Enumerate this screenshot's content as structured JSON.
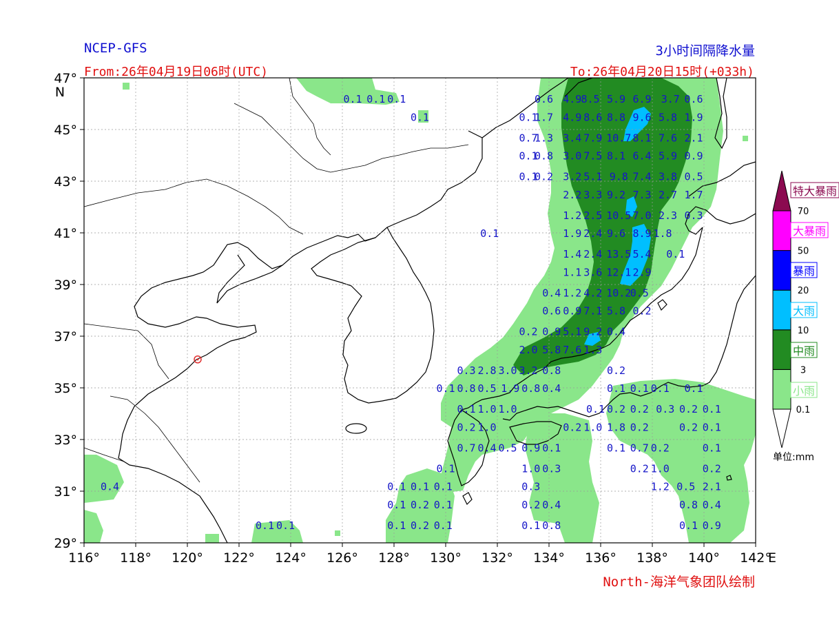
{
  "header": {
    "model": "NCEP-GFS",
    "product": "3小时间隔降水量",
    "from": "From:26年04月19日06时(UTC)",
    "to": "To:26年04月20日15时(+033h)",
    "credit": "North-海洋气象团队绘制"
  },
  "map": {
    "lon_range": [
      116,
      142
    ],
    "lat_range": [
      29,
      47
    ],
    "lon_ticks": [
      "116°",
      "118°",
      "120°",
      "122°",
      "124°",
      "126°",
      "128°",
      "130°",
      "132°",
      "134°",
      "136°",
      "138°",
      "140°",
      "142°"
    ],
    "lat_ticks": [
      "29°",
      "31°",
      "33°",
      "35°",
      "37°",
      "39°",
      "41°",
      "43°",
      "45°",
      "47°"
    ],
    "lon_unit": "E",
    "lat_unit": "N",
    "gridlines": true,
    "marker": {
      "lon": 120.4,
      "lat": 36.1,
      "color": "#e03030"
    }
  },
  "legend": {
    "unit_label": "单位:mm",
    "classes": [
      {
        "name": "小雨",
        "color": "#8ae68a",
        "text_color": "#8ae68a"
      },
      {
        "name": "中雨",
        "color": "#228b22",
        "text_color": "#228b22"
      },
      {
        "name": "大雨",
        "color": "#00bfff",
        "text_color": "#00bfff"
      },
      {
        "name": "暴雨",
        "color": "#0000ff",
        "text_color": "#0000ff"
      },
      {
        "name": "大暴雨",
        "color": "#ff00ff",
        "text_color": "#ff00ff"
      },
      {
        "name": "特大暴雨",
        "color": "#8b0a50",
        "text_color": "#8b0a50"
      }
    ],
    "thresholds": [
      "0.1",
      "3",
      "10",
      "20",
      "50",
      "70"
    ]
  },
  "values": [
    {
      "lon": 126.4,
      "lat": 46.2,
      "v": "0.1"
    },
    {
      "lon": 127.3,
      "lat": 46.2,
      "v": "0.1"
    },
    {
      "lon": 128.1,
      "lat": 46.2,
      "v": "0.1"
    },
    {
      "lon": 129.0,
      "lat": 45.5,
      "v": "0.1"
    },
    {
      "lon": 133.8,
      "lat": 46.2,
      "v": "0.6"
    },
    {
      "lon": 134.9,
      "lat": 46.2,
      "v": "4.9"
    },
    {
      "lon": 135.6,
      "lat": 46.2,
      "v": "8.5"
    },
    {
      "lon": 136.6,
      "lat": 46.2,
      "v": "5.9"
    },
    {
      "lon": 137.6,
      "lat": 46.2,
      "v": "6.9"
    },
    {
      "lon": 138.7,
      "lat": 46.2,
      "v": "3.7"
    },
    {
      "lon": 139.6,
      "lat": 46.2,
      "v": "0.6"
    },
    {
      "lon": 133.2,
      "lat": 45.5,
      "v": "0.1"
    },
    {
      "lon": 133.8,
      "lat": 45.5,
      "v": "1.7"
    },
    {
      "lon": 134.9,
      "lat": 45.5,
      "v": "4.9"
    },
    {
      "lon": 135.7,
      "lat": 45.5,
      "v": "8.6"
    },
    {
      "lon": 136.6,
      "lat": 45.5,
      "v": "8.8"
    },
    {
      "lon": 137.6,
      "lat": 45.5,
      "v": "9.6"
    },
    {
      "lon": 138.6,
      "lat": 45.5,
      "v": "5.8"
    },
    {
      "lon": 139.6,
      "lat": 45.5,
      "v": "1.9"
    },
    {
      "lon": 133.2,
      "lat": 44.7,
      "v": "0.7"
    },
    {
      "lon": 133.8,
      "lat": 44.7,
      "v": "1.3"
    },
    {
      "lon": 134.9,
      "lat": 44.7,
      "v": "3.4"
    },
    {
      "lon": 135.7,
      "lat": 44.7,
      "v": "7.9"
    },
    {
      "lon": 136.7,
      "lat": 44.7,
      "v": "10.7"
    },
    {
      "lon": 137.6,
      "lat": 44.7,
      "v": "8.1"
    },
    {
      "lon": 138.6,
      "lat": 44.7,
      "v": "7.6"
    },
    {
      "lon": 139.6,
      "lat": 44.7,
      "v": "2.1"
    },
    {
      "lon": 133.2,
      "lat": 44.0,
      "v": "0.1"
    },
    {
      "lon": 133.8,
      "lat": 44.0,
      "v": "0.8"
    },
    {
      "lon": 134.9,
      "lat": 44.0,
      "v": "3.0"
    },
    {
      "lon": 135.7,
      "lat": 44.0,
      "v": "7.5"
    },
    {
      "lon": 136.6,
      "lat": 44.0,
      "v": "8.1"
    },
    {
      "lon": 137.6,
      "lat": 44.0,
      "v": "6.4"
    },
    {
      "lon": 138.6,
      "lat": 44.0,
      "v": "5.9"
    },
    {
      "lon": 139.6,
      "lat": 44.0,
      "v": "0.9"
    },
    {
      "lon": 133.2,
      "lat": 43.2,
      "v": "0.1"
    },
    {
      "lon": 133.8,
      "lat": 43.2,
      "v": "0.2"
    },
    {
      "lon": 134.9,
      "lat": 43.2,
      "v": "3.2"
    },
    {
      "lon": 135.7,
      "lat": 43.2,
      "v": "5.1"
    },
    {
      "lon": 136.7,
      "lat": 43.2,
      "v": "9.8"
    },
    {
      "lon": 137.6,
      "lat": 43.2,
      "v": "7.4"
    },
    {
      "lon": 138.6,
      "lat": 43.2,
      "v": "3.8"
    },
    {
      "lon": 139.6,
      "lat": 43.2,
      "v": "0.5"
    },
    {
      "lon": 134.9,
      "lat": 42.5,
      "v": "2.2"
    },
    {
      "lon": 135.7,
      "lat": 42.5,
      "v": "3.3"
    },
    {
      "lon": 136.6,
      "lat": 42.5,
      "v": "9.2"
    },
    {
      "lon": 137.6,
      "lat": 42.5,
      "v": "7.3"
    },
    {
      "lon": 138.6,
      "lat": 42.5,
      "v": "2.7"
    },
    {
      "lon": 139.6,
      "lat": 42.5,
      "v": "1.7"
    },
    {
      "lon": 134.9,
      "lat": 41.7,
      "v": "1.2"
    },
    {
      "lon": 135.7,
      "lat": 41.7,
      "v": "2.5"
    },
    {
      "lon": 136.7,
      "lat": 41.7,
      "v": "10.5"
    },
    {
      "lon": 137.6,
      "lat": 41.7,
      "v": "7.0"
    },
    {
      "lon": 138.6,
      "lat": 41.7,
      "v": "2.3"
    },
    {
      "lon": 139.6,
      "lat": 41.7,
      "v": "0.3"
    },
    {
      "lon": 131.7,
      "lat": 41.0,
      "v": "0.1"
    },
    {
      "lon": 134.9,
      "lat": 41.0,
      "v": "1.9"
    },
    {
      "lon": 135.7,
      "lat": 41.0,
      "v": "2.4"
    },
    {
      "lon": 136.6,
      "lat": 41.0,
      "v": "9.6"
    },
    {
      "lon": 137.6,
      "lat": 41.0,
      "v": "8.9"
    },
    {
      "lon": 138.4,
      "lat": 41.0,
      "v": "1.8"
    },
    {
      "lon": 134.9,
      "lat": 40.2,
      "v": "1.4"
    },
    {
      "lon": 135.7,
      "lat": 40.2,
      "v": "2.4"
    },
    {
      "lon": 136.7,
      "lat": 40.2,
      "v": "13.5"
    },
    {
      "lon": 137.6,
      "lat": 40.2,
      "v": "5.4"
    },
    {
      "lon": 138.9,
      "lat": 40.2,
      "v": "0.1"
    },
    {
      "lon": 134.9,
      "lat": 39.5,
      "v": "1.1"
    },
    {
      "lon": 135.7,
      "lat": 39.5,
      "v": "3.6"
    },
    {
      "lon": 136.7,
      "lat": 39.5,
      "v": "12.1"
    },
    {
      "lon": 137.6,
      "lat": 39.5,
      "v": "2.9"
    },
    {
      "lon": 134.1,
      "lat": 38.7,
      "v": "0.4"
    },
    {
      "lon": 134.9,
      "lat": 38.7,
      "v": "1.2"
    },
    {
      "lon": 135.7,
      "lat": 38.7,
      "v": "4.2"
    },
    {
      "lon": 136.7,
      "lat": 38.7,
      "v": "10.2"
    },
    {
      "lon": 137.5,
      "lat": 38.7,
      "v": "0.5"
    },
    {
      "lon": 134.1,
      "lat": 38.0,
      "v": "0.6"
    },
    {
      "lon": 134.9,
      "lat": 38.0,
      "v": "0.9"
    },
    {
      "lon": 135.7,
      "lat": 38.0,
      "v": "7.1"
    },
    {
      "lon": 136.6,
      "lat": 38.0,
      "v": "5.8"
    },
    {
      "lon": 137.6,
      "lat": 38.0,
      "v": "0.2"
    },
    {
      "lon": 133.2,
      "lat": 37.2,
      "v": "0.2"
    },
    {
      "lon": 134.1,
      "lat": 37.2,
      "v": "0.9"
    },
    {
      "lon": 134.9,
      "lat": 37.2,
      "v": "5.1"
    },
    {
      "lon": 135.7,
      "lat": 37.2,
      "v": "9.2"
    },
    {
      "lon": 136.6,
      "lat": 37.2,
      "v": "0.4"
    },
    {
      "lon": 133.2,
      "lat": 36.5,
      "v": "2.0"
    },
    {
      "lon": 134.1,
      "lat": 36.5,
      "v": "5.8"
    },
    {
      "lon": 134.9,
      "lat": 36.5,
      "v": "7.6"
    },
    {
      "lon": 135.7,
      "lat": 36.5,
      "v": "1.3"
    },
    {
      "lon": 130.8,
      "lat": 35.7,
      "v": "0.3"
    },
    {
      "lon": 131.6,
      "lat": 35.7,
      "v": "2.8"
    },
    {
      "lon": 132.4,
      "lat": 35.7,
      "v": "3.0"
    },
    {
      "lon": 133.2,
      "lat": 35.7,
      "v": "3.2"
    },
    {
      "lon": 134.1,
      "lat": 35.7,
      "v": "0.8"
    },
    {
      "lon": 136.6,
      "lat": 35.7,
      "v": "0.2"
    },
    {
      "lon": 130.0,
      "lat": 35.0,
      "v": "0.1"
    },
    {
      "lon": 130.8,
      "lat": 35.0,
      "v": "0.8"
    },
    {
      "lon": 131.6,
      "lat": 35.0,
      "v": "0.5"
    },
    {
      "lon": 132.5,
      "lat": 35.0,
      "v": "1.9"
    },
    {
      "lon": 133.3,
      "lat": 35.0,
      "v": "0.8"
    },
    {
      "lon": 134.1,
      "lat": 35.0,
      "v": "0.4"
    },
    {
      "lon": 136.6,
      "lat": 35.0,
      "v": "0.1"
    },
    {
      "lon": 137.5,
      "lat": 35.0,
      "v": "0.1"
    },
    {
      "lon": 138.3,
      "lat": 35.0,
      "v": "0.1"
    },
    {
      "lon": 139.6,
      "lat": 35.0,
      "v": "0.1"
    },
    {
      "lon": 130.8,
      "lat": 34.2,
      "v": "0.1"
    },
    {
      "lon": 131.6,
      "lat": 34.2,
      "v": "1.0"
    },
    {
      "lon": 132.4,
      "lat": 34.2,
      "v": "1.0"
    },
    {
      "lon": 135.8,
      "lat": 34.2,
      "v": "0.1"
    },
    {
      "lon": 136.6,
      "lat": 34.2,
      "v": "0.2"
    },
    {
      "lon": 137.5,
      "lat": 34.2,
      "v": "0.2"
    },
    {
      "lon": 138.5,
      "lat": 34.2,
      "v": "0.3"
    },
    {
      "lon": 139.4,
      "lat": 34.2,
      "v": "0.2"
    },
    {
      "lon": 140.3,
      "lat": 34.2,
      "v": "0.1"
    },
    {
      "lon": 130.8,
      "lat": 33.5,
      "v": "0.2"
    },
    {
      "lon": 131.6,
      "lat": 33.5,
      "v": "1.0"
    },
    {
      "lon": 134.9,
      "lat": 33.5,
      "v": "0.2"
    },
    {
      "lon": 135.7,
      "lat": 33.5,
      "v": "1.0"
    },
    {
      "lon": 136.6,
      "lat": 33.5,
      "v": "1.8"
    },
    {
      "lon": 137.5,
      "lat": 33.5,
      "v": "0.2"
    },
    {
      "lon": 139.4,
      "lat": 33.5,
      "v": "0.2"
    },
    {
      "lon": 140.3,
      "lat": 33.5,
      "v": "0.1"
    },
    {
      "lon": 130.8,
      "lat": 32.7,
      "v": "0.7"
    },
    {
      "lon": 131.6,
      "lat": 32.7,
      "v": "0.4"
    },
    {
      "lon": 132.4,
      "lat": 32.7,
      "v": "0.5"
    },
    {
      "lon": 133.3,
      "lat": 32.7,
      "v": "0.9"
    },
    {
      "lon": 134.1,
      "lat": 32.7,
      "v": "0.1"
    },
    {
      "lon": 136.6,
      "lat": 32.7,
      "v": "0.1"
    },
    {
      "lon": 137.5,
      "lat": 32.7,
      "v": "0.7"
    },
    {
      "lon": 138.3,
      "lat": 32.7,
      "v": "0.2"
    },
    {
      "lon": 140.3,
      "lat": 32.7,
      "v": "0.1"
    },
    {
      "lon": 130.0,
      "lat": 31.9,
      "v": "0.1"
    },
    {
      "lon": 133.3,
      "lat": 31.9,
      "v": "1.0"
    },
    {
      "lon": 134.1,
      "lat": 31.9,
      "v": "0.3"
    },
    {
      "lon": 137.5,
      "lat": 31.9,
      "v": "0.2"
    },
    {
      "lon": 138.3,
      "lat": 31.9,
      "v": "1.0"
    },
    {
      "lon": 140.3,
      "lat": 31.9,
      "v": "0.2"
    },
    {
      "lon": 117.0,
      "lat": 31.2,
      "v": "0.4"
    },
    {
      "lon": 128.1,
      "lat": 31.2,
      "v": "0.1"
    },
    {
      "lon": 129.0,
      "lat": 31.2,
      "v": "0.1"
    },
    {
      "lon": 129.9,
      "lat": 31.2,
      "v": "0.1"
    },
    {
      "lon": 133.3,
      "lat": 31.2,
      "v": "0.3"
    },
    {
      "lon": 138.3,
      "lat": 31.2,
      "v": "1.2"
    },
    {
      "lon": 139.3,
      "lat": 31.2,
      "v": "0.5"
    },
    {
      "lon": 140.3,
      "lat": 31.2,
      "v": "2.1"
    },
    {
      "lon": 128.1,
      "lat": 30.5,
      "v": "0.1"
    },
    {
      "lon": 129.0,
      "lat": 30.5,
      "v": "0.2"
    },
    {
      "lon": 129.9,
      "lat": 30.5,
      "v": "0.1"
    },
    {
      "lon": 133.3,
      "lat": 30.5,
      "v": "0.2"
    },
    {
      "lon": 134.1,
      "lat": 30.5,
      "v": "0.4"
    },
    {
      "lon": 139.4,
      "lat": 30.5,
      "v": "0.8"
    },
    {
      "lon": 140.3,
      "lat": 30.5,
      "v": "0.4"
    },
    {
      "lon": 123.0,
      "lat": 29.7,
      "v": "0.1"
    },
    {
      "lon": 123.8,
      "lat": 29.7,
      "v": "0.1"
    },
    {
      "lon": 128.1,
      "lat": 29.7,
      "v": "0.1"
    },
    {
      "lon": 129.0,
      "lat": 29.7,
      "v": "0.2"
    },
    {
      "lon": 129.9,
      "lat": 29.7,
      "v": "0.1"
    },
    {
      "lon": 133.3,
      "lat": 29.7,
      "v": "0.1"
    },
    {
      "lon": 134.1,
      "lat": 29.7,
      "v": "0.8"
    },
    {
      "lon": 139.4,
      "lat": 29.7,
      "v": "0.1"
    },
    {
      "lon": 140.3,
      "lat": 29.7,
      "v": "0.9"
    }
  ]
}
